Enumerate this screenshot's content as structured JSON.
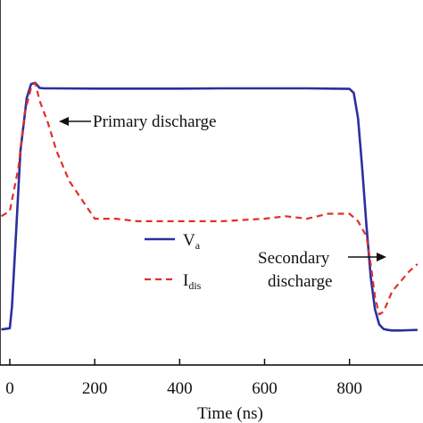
{
  "chart_data": {
    "type": "line",
    "xlabel": "Time (ns)",
    "ylabel": "",
    "xlim": [
      -20,
      960
    ],
    "ylim": [
      0,
      1
    ],
    "x_ticks": [
      0,
      200,
      400,
      600,
      800
    ],
    "grid": false,
    "legend_position": "center",
    "series": [
      {
        "name": "V",
        "name_sub": "a",
        "color": "#2b2f9e",
        "style": "solid",
        "x": [
          -20,
          0,
          5,
          15,
          25,
          40,
          50,
          60,
          70,
          80,
          100,
          200,
          300,
          400,
          500,
          600,
          700,
          800,
          810,
          820,
          830,
          840,
          850,
          860,
          870,
          880,
          890,
          900,
          920,
          940,
          960
        ],
        "y": [
          0.01,
          0.015,
          0.1,
          0.4,
          0.72,
          0.93,
          0.985,
          0.99,
          0.97,
          0.968,
          0.968,
          0.967,
          0.967,
          0.967,
          0.968,
          0.968,
          0.968,
          0.966,
          0.95,
          0.85,
          0.65,
          0.42,
          0.22,
          0.09,
          0.03,
          0.012,
          0.008,
          0.006,
          0.006,
          0.007,
          0.008
        ]
      },
      {
        "name": "I",
        "name_sub": "dis",
        "color": "#e0302a",
        "style": "dashed",
        "x": [
          -20,
          0,
          20,
          35,
          50,
          60,
          70,
          90,
          110,
          140,
          160,
          180,
          200,
          250,
          300,
          400,
          500,
          600,
          650,
          700,
          750,
          800,
          820,
          840,
          850,
          860,
          870,
          880,
          890,
          900,
          920,
          940,
          960
        ],
        "y": [
          0.46,
          0.48,
          0.65,
          0.87,
          0.97,
          0.99,
          0.92,
          0.83,
          0.72,
          0.6,
          0.55,
          0.5,
          0.45,
          0.45,
          0.44,
          0.44,
          0.44,
          0.45,
          0.46,
          0.45,
          0.47,
          0.47,
          0.44,
          0.38,
          0.27,
          0.14,
          0.07,
          0.08,
          0.12,
          0.16,
          0.2,
          0.24,
          0.27
        ]
      }
    ],
    "annotations": [
      {
        "text": "Primary discharge"
      },
      {
        "text": "Secondary"
      },
      {
        "text": "discharge"
      }
    ]
  }
}
